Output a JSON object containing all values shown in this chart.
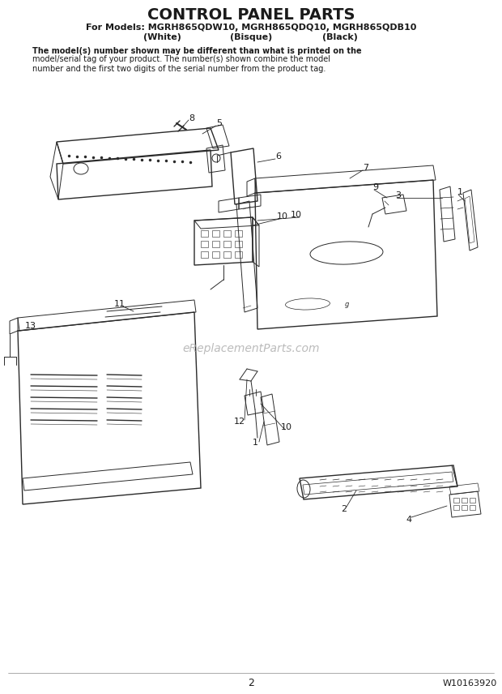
{
  "title": "CONTROL PANEL PARTS",
  "subtitle_line1": "For Models: MGRH865QDW10, MGRH865QDQ10, MGRH865QDB10",
  "subtitle_line2_a": "(White)",
  "subtitle_line2_b": "(Bisque)",
  "subtitle_line2_c": "(Black)",
  "disclaimer_bold": "The model(s) number shown may be different than what is printed on the",
  "disclaimer_normal": "model/serial tag of your product. The number(s) shown combine the model\nnumber and the first two digits of the serial number from the product tag.",
  "watermark": "eReplacementParts.com",
  "page_number": "2",
  "part_number": "W10163920",
  "bg_color": "#ffffff",
  "line_color": "#2a2a2a",
  "text_color": "#1a1a1a",
  "watermark_color": "#b0b0b0"
}
